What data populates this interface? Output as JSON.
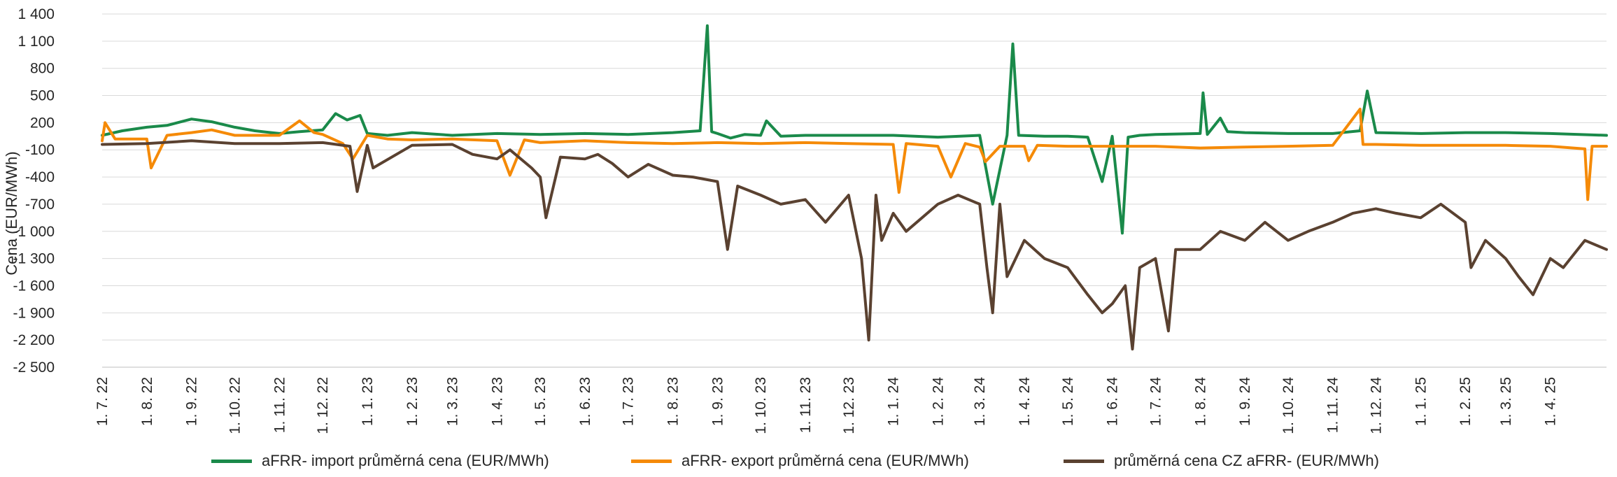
{
  "chart_data": {
    "type": "line",
    "ylabel": "Cena (EUR/MWh)",
    "ylim": [
      -2500,
      1400
    ],
    "yticks": [
      1400,
      1100,
      800,
      500,
      200,
      -100,
      -400,
      -700,
      -1000,
      -1300,
      -1600,
      -1900,
      -2200,
      -2500
    ],
    "ytick_labels": [
      "1 400",
      "1 100",
      "800",
      "500",
      "200",
      "-100",
      "-400",
      "-700",
      "-1 000",
      "-1 300",
      "-1 600",
      "-1 900",
      "-2 200",
      "-2 500"
    ],
    "xlim": [
      "2022-07-01",
      "2025-05-10"
    ],
    "xticks": [
      "2022-07-01",
      "2022-08-01",
      "2022-09-01",
      "2022-10-01",
      "2022-11-01",
      "2022-12-01",
      "2023-01-01",
      "2023-02-01",
      "2023-03-01",
      "2023-04-01",
      "2023-05-01",
      "2023-06-01",
      "2023-07-01",
      "2023-08-01",
      "2023-09-01",
      "2023-10-01",
      "2023-11-01",
      "2023-12-01",
      "2024-01-01",
      "2024-02-01",
      "2024-03-01",
      "2024-04-01",
      "2024-05-01",
      "2024-06-01",
      "2024-07-01",
      "2024-08-01",
      "2024-09-01",
      "2024-10-01",
      "2024-11-01",
      "2024-12-01",
      "2025-01-01",
      "2025-02-01",
      "2025-03-01",
      "2025-04-01"
    ],
    "xtick_labels": [
      "1. 7. 22",
      "1. 8. 22",
      "1. 9. 22",
      "1. 10. 22",
      "1. 11. 22",
      "1. 12. 22",
      "1. 1. 23",
      "1. 2. 23",
      "1. 3. 23",
      "1. 4. 23",
      "1. 5. 23",
      "1. 6. 23",
      "1. 7. 23",
      "1. 8. 23",
      "1. 9. 23",
      "1. 10. 23",
      "1. 11. 23",
      "1. 12. 23",
      "1. 1. 24",
      "1. 2. 24",
      "1. 3. 24",
      "1. 4. 24",
      "1. 5. 24",
      "1. 6. 24",
      "1. 7. 24",
      "1. 8. 24",
      "1. 9. 24",
      "1. 10. 24",
      "1. 11. 24",
      "1. 12. 24",
      "1. 1. 25",
      "1. 2. 25",
      "1. 3. 25",
      "1. 4. 25"
    ],
    "grid": true,
    "legend_position": "bottom",
    "series": [
      {
        "name": "aFRR- import průměrná cena (EUR/MWh)",
        "color": "#1a8a4a",
        "x": [
          "2022-07-01",
          "2022-07-15",
          "2022-08-01",
          "2022-08-15",
          "2022-09-01",
          "2022-09-15",
          "2022-10-01",
          "2022-10-15",
          "2022-11-01",
          "2022-11-15",
          "2022-12-01",
          "2022-12-10",
          "2022-12-18",
          "2022-12-27",
          "2023-01-01",
          "2023-01-15",
          "2023-02-01",
          "2023-03-01",
          "2023-04-01",
          "2023-05-01",
          "2023-06-01",
          "2023-07-01",
          "2023-08-01",
          "2023-08-20",
          "2023-08-25",
          "2023-08-28",
          "2023-09-01",
          "2023-09-10",
          "2023-09-20",
          "2023-10-01",
          "2023-10-05",
          "2023-10-15",
          "2023-11-01",
          "2023-12-01",
          "2024-01-01",
          "2024-02-01",
          "2024-03-01",
          "2024-03-10",
          "2024-03-20",
          "2024-03-24",
          "2024-03-28",
          "2024-04-15",
          "2024-05-01",
          "2024-05-15",
          "2024-05-25",
          "2024-06-01",
          "2024-06-08",
          "2024-06-12",
          "2024-06-20",
          "2024-07-01",
          "2024-08-01",
          "2024-08-03",
          "2024-08-06",
          "2024-08-15",
          "2024-08-20",
          "2024-09-01",
          "2024-10-01",
          "2024-11-01",
          "2024-11-20",
          "2024-11-25",
          "2024-12-01",
          "2025-01-01",
          "2025-02-01",
          "2025-03-01",
          "2025-04-01",
          "2025-05-10"
        ],
        "values": [
          60,
          110,
          150,
          170,
          240,
          210,
          150,
          110,
          80,
          100,
          120,
          300,
          230,
          280,
          80,
          60,
          90,
          60,
          80,
          70,
          80,
          70,
          90,
          110,
          1270,
          100,
          80,
          30,
          70,
          60,
          220,
          50,
          60,
          60,
          60,
          40,
          60,
          -700,
          60,
          1070,
          60,
          50,
          50,
          40,
          -450,
          50,
          -1020,
          40,
          60,
          70,
          80,
          530,
          70,
          250,
          100,
          90,
          80,
          80,
          110,
          550,
          90,
          80,
          90,
          90,
          80,
          60
        ]
      },
      {
        "name": "aFRR- export průměrná cena (EUR/MWh)",
        "color": "#f58a07",
        "x": [
          "2022-07-01",
          "2022-07-03",
          "2022-07-10",
          "2022-08-01",
          "2022-08-04",
          "2022-08-15",
          "2022-09-01",
          "2022-09-15",
          "2022-10-01",
          "2022-11-01",
          "2022-11-15",
          "2022-11-25",
          "2022-12-01",
          "2022-12-15",
          "2022-12-22",
          "2023-01-01",
          "2023-01-15",
          "2023-02-01",
          "2023-03-01",
          "2023-04-01",
          "2023-04-10",
          "2023-04-20",
          "2023-05-01",
          "2023-06-01",
          "2023-07-01",
          "2023-08-01",
          "2023-09-01",
          "2023-10-01",
          "2023-11-01",
          "2023-12-01",
          "2024-01-01",
          "2024-01-05",
          "2024-01-10",
          "2024-02-01",
          "2024-02-10",
          "2024-02-20",
          "2024-03-01",
          "2024-03-05",
          "2024-03-15",
          "2024-04-01",
          "2024-04-04",
          "2024-04-10",
          "2024-05-01",
          "2024-06-01",
          "2024-07-01",
          "2024-08-01",
          "2024-09-01",
          "2024-10-01",
          "2024-11-01",
          "2024-11-20",
          "2024-11-22",
          "2024-12-01",
          "2025-01-01",
          "2025-02-01",
          "2025-03-01",
          "2025-04-01",
          "2025-04-25",
          "2025-04-27",
          "2025-04-30",
          "2025-05-10"
        ],
        "values": [
          0,
          200,
          20,
          20,
          -300,
          60,
          90,
          120,
          60,
          60,
          220,
          90,
          70,
          -30,
          -200,
          60,
          20,
          10,
          20,
          0,
          -380,
          10,
          -20,
          0,
          -20,
          -30,
          -20,
          -30,
          -20,
          -30,
          -40,
          -570,
          -30,
          -60,
          -400,
          -30,
          -70,
          -230,
          -60,
          -60,
          -220,
          -50,
          -60,
          -60,
          -60,
          -80,
          -70,
          -60,
          -50,
          350,
          -40,
          -40,
          -50,
          -50,
          -50,
          -60,
          -90,
          -650,
          -60,
          -60
        ]
      },
      {
        "name": "průměrná cena CZ aFRR- (EUR/MWh)",
        "color": "#5a4130",
        "x": [
          "2022-07-01",
          "2022-08-01",
          "2022-09-01",
          "2022-10-01",
          "2022-11-01",
          "2022-12-01",
          "2022-12-20",
          "2022-12-25",
          "2023-01-01",
          "2023-01-05",
          "2023-02-01",
          "2023-03-01",
          "2023-03-15",
          "2023-04-01",
          "2023-04-10",
          "2023-04-25",
          "2023-05-01",
          "2023-05-05",
          "2023-05-15",
          "2023-06-01",
          "2023-06-10",
          "2023-06-20",
          "2023-07-01",
          "2023-07-15",
          "2023-08-01",
          "2023-08-15",
          "2023-09-01",
          "2023-09-08",
          "2023-09-15",
          "2023-10-01",
          "2023-10-15",
          "2023-11-01",
          "2023-11-15",
          "2023-12-01",
          "2023-12-10",
          "2023-12-15",
          "2023-12-20",
          "2023-12-24",
          "2024-01-01",
          "2024-01-10",
          "2024-02-01",
          "2024-02-15",
          "2024-03-01",
          "2024-03-06",
          "2024-03-10",
          "2024-03-15",
          "2024-03-20",
          "2024-04-01",
          "2024-04-15",
          "2024-05-01",
          "2024-05-15",
          "2024-05-25",
          "2024-06-01",
          "2024-06-10",
          "2024-06-15",
          "2024-06-20",
          "2024-07-01",
          "2024-07-10",
          "2024-07-15",
          "2024-08-01",
          "2024-08-15",
          "2024-09-01",
          "2024-09-15",
          "2024-10-01",
          "2024-10-15",
          "2024-11-01",
          "2024-11-15",
          "2024-12-01",
          "2024-12-15",
          "2025-01-01",
          "2025-01-15",
          "2025-02-01",
          "2025-02-05",
          "2025-02-15",
          "2025-03-01",
          "2025-03-10",
          "2025-03-20",
          "2025-04-01",
          "2025-04-10",
          "2025-04-25",
          "2025-05-10"
        ],
        "values": [
          -40,
          -30,
          0,
          -30,
          -30,
          -20,
          -60,
          -560,
          -50,
          -300,
          -50,
          -40,
          -150,
          -200,
          -100,
          -300,
          -400,
          -850,
          -180,
          -200,
          -150,
          -250,
          -400,
          -260,
          -380,
          -400,
          -450,
          -1200,
          -500,
          -600,
          -700,
          -650,
          -900,
          -600,
          -1300,
          -2200,
          -600,
          -1100,
          -800,
          -1000,
          -700,
          -600,
          -700,
          -1400,
          -1900,
          -700,
          -1500,
          -1100,
          -1300,
          -1400,
          -1700,
          -1900,
          -1800,
          -1600,
          -2300,
          -1400,
          -1300,
          -2100,
          -1200,
          -1200,
          -1000,
          -1100,
          -900,
          -1100,
          -1000,
          -900,
          -800,
          -750,
          -800,
          -850,
          -700,
          -900,
          -1400,
          -1100,
          -1300,
          -1500,
          -1700,
          -1300,
          -1400,
          -1100,
          -1200
        ]
      }
    ]
  }
}
